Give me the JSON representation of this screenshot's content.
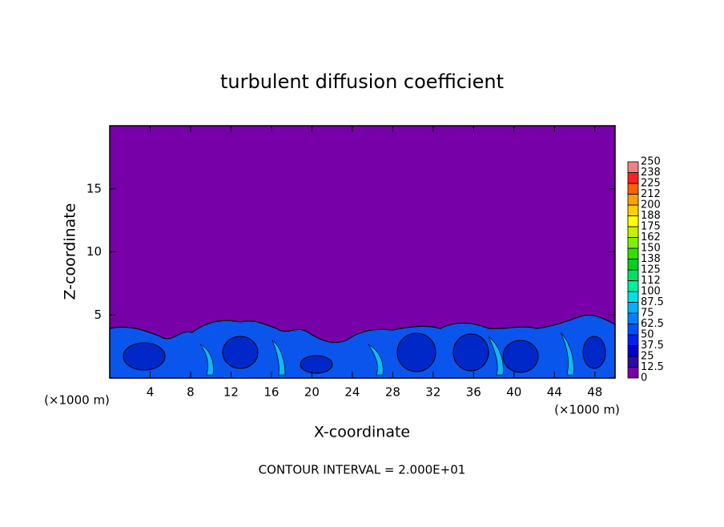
{
  "chart_data": {
    "type": "contour",
    "title": "turbulent diffusion coefficient",
    "xlabel": "X-coordinate",
    "ylabel": "Z-coordinate",
    "x_unit_label": "(×1000 m)",
    "annotation": "CONTOUR INTERVAL = 2.000E+01",
    "xlim": [
      0,
      50
    ],
    "ylim": [
      0,
      20
    ],
    "xticks": [
      4,
      8,
      12,
      16,
      20,
      24,
      28,
      32,
      36,
      40,
      44,
      48
    ],
    "yticks": [
      5,
      10,
      15
    ],
    "colorbar": {
      "levels": [
        0,
        12.5,
        25,
        37.5,
        50,
        62.5,
        75,
        87.5,
        100,
        {
          "value": 112.5,
          "label": "112"
        },
        125,
        {
          "value": 137.5,
          "label": "138"
        },
        150,
        {
          "value": 162.5,
          "label": "162"
        },
        175,
        {
          "value": 187.5,
          "label": "188"
        },
        200,
        {
          "value": 212.5,
          "label": "212"
        },
        225,
        {
          "value": 237.5,
          "label": "238"
        },
        250
      ],
      "colors": [
        "#7800a8",
        "#2a0aa8",
        "#0000d0",
        "#0020f0",
        "#0050ff",
        "#0080ff",
        "#00b0f8",
        "#00e0e0",
        "#00f0a0",
        "#00e060",
        "#00d020",
        "#30e000",
        "#80f000",
        "#c8f000",
        "#ffff00",
        "#ffd000",
        "#ffa000",
        "#ff6000",
        "#ff2020",
        "#f08080"
      ]
    }
  }
}
